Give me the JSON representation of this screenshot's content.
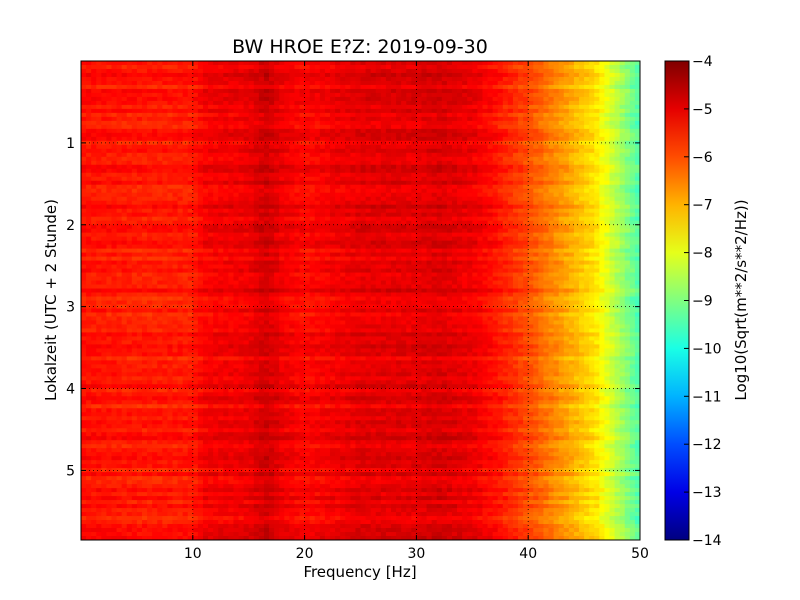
{
  "chart_data": {
    "type": "heatmap",
    "title": "BW HROE E?Z: 2019-09-30",
    "xlabel": "Frequency [Hz]",
    "ylabel": "Lokalzeit (UTC + 2 Stunde)",
    "xlim": [
      0,
      50
    ],
    "ylim": [
      5.85,
      0
    ],
    "x_ticks": [
      10,
      20,
      30,
      40,
      50
    ],
    "y_ticks": [
      1,
      2,
      3,
      4,
      5
    ],
    "grid": true,
    "colormap": "jet",
    "colorbar": {
      "label": "Log10(Sqrt(m**2/s**2/Hz))",
      "range": [
        -14,
        -4
      ],
      "ticks": [
        -4,
        -5,
        -6,
        -7,
        -8,
        -9,
        -10,
        -11,
        -12,
        -13,
        -14
      ]
    },
    "frequency_profile": {
      "frequency_hz": [
        0,
        5,
        10,
        11,
        15,
        16.5,
        18,
        20,
        25,
        30,
        32,
        35,
        37,
        38,
        40,
        42,
        44,
        46,
        48,
        50
      ],
      "log10_amplitude": [
        -5.4,
        -5.5,
        -5.5,
        -5.2,
        -5.1,
        -4.8,
        -5.1,
        -5.3,
        -5.0,
        -5.0,
        -4.9,
        -5.1,
        -5.4,
        -5.6,
        -6.0,
        -6.5,
        -7.0,
        -7.5,
        -8.5,
        -9.5
      ]
    }
  }
}
